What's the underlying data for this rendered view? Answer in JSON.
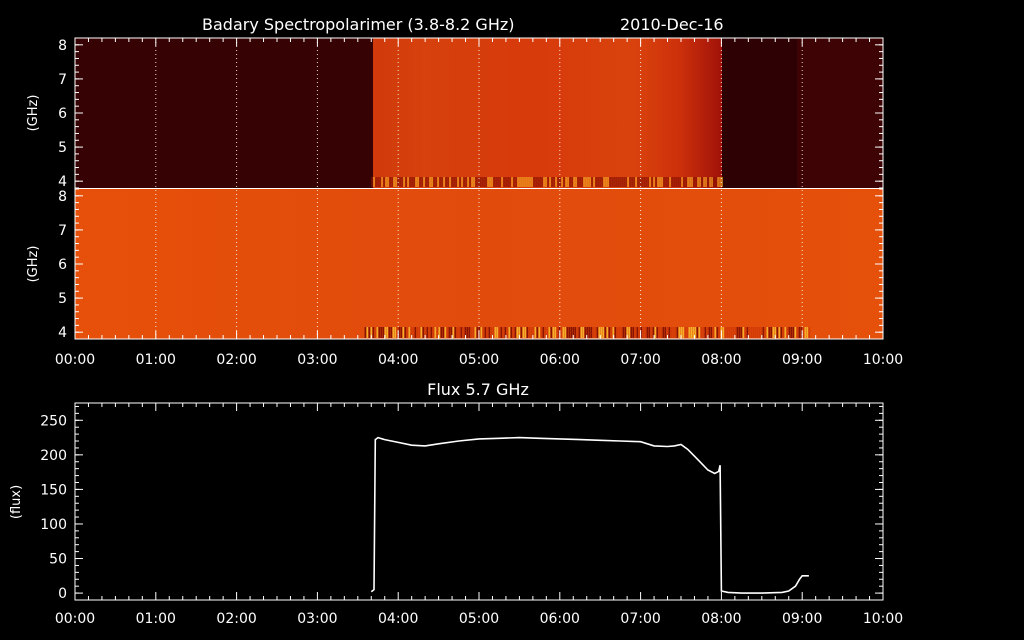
{
  "header": {
    "title": "Badary Spectropolarimer (3.8-8.2 GHz)",
    "date": "2010-Dec-16"
  },
  "spectrogram_top": {
    "ylabel": "(GHz)",
    "yticks": [
      "4",
      "5",
      "6",
      "7",
      "8"
    ]
  },
  "spectrogram_bottom": {
    "ylabel": "(GHz)",
    "yticks": [
      "4",
      "5",
      "6",
      "7",
      "8"
    ]
  },
  "flux_panel": {
    "title": "Flux 5.7 GHz",
    "ylabel": "(flux)",
    "yticks": [
      "0",
      "50",
      "100",
      "150",
      "200",
      "250"
    ]
  },
  "time_axis": {
    "ticks": [
      "00:00",
      "01:00",
      "02:00",
      "03:00",
      "04:00",
      "05:00",
      "06:00",
      "07:00",
      "08:00",
      "09:00",
      "10:00"
    ]
  },
  "colors": {
    "background": "#000000",
    "axes": "#ffffff",
    "spec_dark": "#360203",
    "spec_dark2": "#3e0405",
    "spec_active": "#d63a0c",
    "spec_active_edge": "#a3140a",
    "spec_bottom": "#e6500a",
    "flux_line": "#ffffff"
  },
  "chart_data": [
    {
      "type": "heatmap",
      "title": "Badary Spectropolarimer (3.8-8.2 GHz)",
      "xlabel": "",
      "ylabel": "(GHz)",
      "xlim": [
        "00:00",
        "10:00"
      ],
      "ylim": [
        3.8,
        8.2
      ],
      "segments": [
        {
          "from": "00:00",
          "to": "03:40",
          "level": "low",
          "color": "#360203"
        },
        {
          "from": "03:40",
          "to": "08:00",
          "level": "high",
          "color": "#d63a0c"
        },
        {
          "from": "08:00",
          "to": "08:55",
          "level": "low",
          "color": "#300204"
        },
        {
          "from": "08:55",
          "to": "10:00",
          "level": "low",
          "color": "#3e0405"
        }
      ]
    },
    {
      "type": "heatmap",
      "title": "",
      "xlabel": "",
      "ylabel": "(GHz)",
      "xlim": [
        "00:00",
        "10:00"
      ],
      "ylim": [
        3.8,
        8.2
      ],
      "segments": [
        {
          "from": "00:00",
          "to": "10:00",
          "level": "uniform",
          "color": "#e6500a"
        }
      ]
    },
    {
      "type": "line",
      "title": "Flux 5.7 GHz",
      "xlabel": "",
      "ylabel": "(flux)",
      "xlim": [
        "00:00",
        "10:00"
      ],
      "ylim": [
        -10,
        275
      ],
      "grid": false,
      "series": [
        {
          "x": [
            "03:40",
            "03:42",
            "03:43",
            "03:45",
            "03:50",
            "04:00",
            "04:10",
            "04:20",
            "04:30",
            "04:45",
            "05:00",
            "05:15",
            "05:30",
            "05:45",
            "06:00",
            "06:15",
            "06:30",
            "06:45",
            "07:00",
            "07:10",
            "07:20",
            "07:25",
            "07:30",
            "07:35",
            "07:40",
            "07:45",
            "07:50",
            "07:55",
            "07:58",
            "07:59",
            "08:00",
            "08:05",
            "08:15",
            "08:30",
            "08:45",
            "08:50",
            "08:55",
            "08:58",
            "09:00",
            "09:05"
          ],
          "y": [
            2,
            5,
            222,
            225,
            222,
            218,
            214,
            213,
            216,
            220,
            223,
            224,
            225,
            224,
            223,
            222,
            221,
            220,
            219,
            213,
            212,
            213,
            215,
            208,
            198,
            188,
            178,
            173,
            176,
            185,
            3,
            1,
            0,
            0,
            1,
            3,
            10,
            20,
            25,
            25
          ]
        }
      ]
    }
  ]
}
